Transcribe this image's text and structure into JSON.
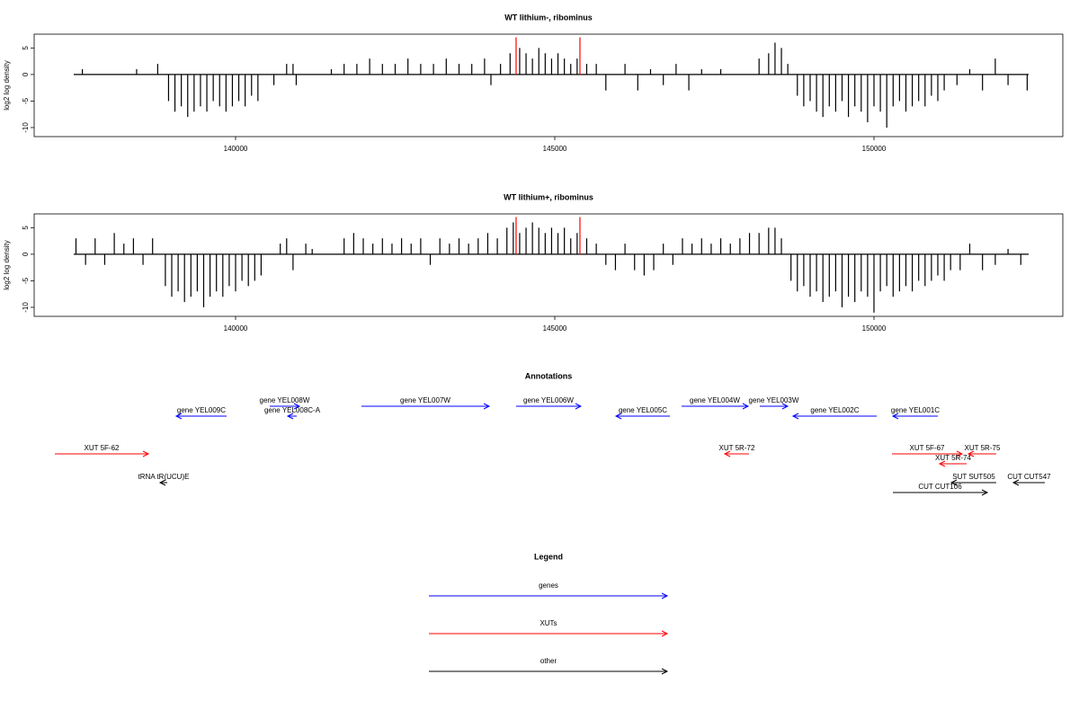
{
  "chart_data": [
    {
      "type": "bar",
      "title": "WT lithium-, ribominus",
      "y_label": "log2 log density",
      "color": "#000000",
      "xlim": [
        136845,
        152958
      ],
      "ylim": [
        -11.7,
        7.6
      ],
      "xticks": [
        140000,
        145000,
        150000
      ],
      "yticks": [
        -10,
        -5,
        0,
        5
      ],
      "track_range": [
        137465,
        152423
      ],
      "highlights": {
        "color": "#ff0000",
        "x": [
          144394,
          145394
        ],
        "values": [
          7,
          7
        ]
      },
      "x": [
        137600,
        138450,
        138780,
        138950,
        139050,
        139150,
        139250,
        139350,
        139450,
        139550,
        139650,
        139750,
        139850,
        139950,
        140050,
        140150,
        140250,
        140350,
        140600,
        140800,
        140900,
        140950,
        141500,
        141700,
        141900,
        142100,
        142300,
        142500,
        142700,
        142900,
        143100,
        143300,
        143500,
        143700,
        143900,
        144000,
        144150,
        144300,
        144450,
        144550,
        144650,
        144750,
        144850,
        144950,
        145050,
        145150,
        145250,
        145350,
        145500,
        145650,
        145800,
        146100,
        146300,
        146500,
        146700,
        146900,
        147100,
        147300,
        147600,
        148200,
        148350,
        148450,
        148550,
        148650,
        148800,
        148900,
        149000,
        149100,
        149200,
        149300,
        149400,
        149500,
        149600,
        149700,
        149800,
        149900,
        150000,
        150100,
        150200,
        150300,
        150400,
        150500,
        150600,
        150700,
        150800,
        150900,
        151000,
        151100,
        151300,
        151500,
        151700,
        151900,
        152100,
        152400
      ],
      "values": [
        1,
        1,
        2,
        -5,
        -7,
        -6,
        -8,
        -7,
        -6,
        -7,
        -5,
        -6,
        -7,
        -6,
        -5,
        -6,
        -4,
        -5,
        -2,
        2,
        2,
        -2,
        1,
        2,
        2,
        3,
        2,
        2,
        3,
        2,
        2,
        3,
        2,
        2,
        3,
        -2,
        2,
        4,
        5,
        4,
        3,
        5,
        4,
        3,
        4,
        3,
        2,
        3,
        2,
        2,
        -3,
        2,
        -3,
        1,
        -2,
        2,
        -3,
        1,
        1,
        3,
        4,
        6,
        5,
        2,
        -4,
        -6,
        -5,
        -7,
        -8,
        -6,
        -7,
        -5,
        -8,
        -6,
        -7,
        -9,
        -6,
        -7,
        -10,
        -6,
        -5,
        -7,
        -6,
        -5,
        -6,
        -4,
        -5,
        -3,
        -2,
        1,
        -3,
        3,
        -2,
        -3
      ]
    },
    {
      "type": "bar",
      "title": "WT lithium+, ribominus",
      "y_label": "log2 log density",
      "color": "#000000",
      "xlim": [
        136845,
        152958
      ],
      "ylim": [
        -11.7,
        7.6
      ],
      "xticks": [
        140000,
        145000,
        150000
      ],
      "yticks": [
        -10,
        -5,
        0,
        5
      ],
      "track_range": [
        137465,
        152423
      ],
      "highlights": {
        "color": "#ff0000",
        "x": [
          144394,
          145394
        ],
        "values": [
          7,
          7
        ]
      },
      "x": [
        137500,
        137650,
        137800,
        137950,
        138100,
        138250,
        138400,
        138550,
        138700,
        138900,
        139000,
        139100,
        139200,
        139300,
        139400,
        139500,
        139600,
        139700,
        139800,
        139900,
        140000,
        140100,
        140200,
        140300,
        140400,
        140700,
        140800,
        140900,
        141100,
        141200,
        141700,
        141850,
        142000,
        142150,
        142300,
        142450,
        142600,
        142750,
        142900,
        143050,
        143200,
        143350,
        143500,
        143650,
        143800,
        143950,
        144100,
        144250,
        144350,
        144450,
        144550,
        144650,
        144750,
        144850,
        144950,
        145050,
        145150,
        145250,
        145350,
        145500,
        145650,
        145800,
        145950,
        146100,
        146250,
        146400,
        146550,
        146700,
        146850,
        147000,
        147150,
        147300,
        147450,
        147600,
        147750,
        147900,
        148050,
        148200,
        148350,
        148450,
        148550,
        148700,
        148800,
        148900,
        149000,
        149100,
        149200,
        149300,
        149400,
        149500,
        149600,
        149700,
        149800,
        149900,
        150000,
        150100,
        150200,
        150300,
        150400,
        150500,
        150600,
        150700,
        150800,
        150900,
        151000,
        151100,
        151200,
        151350,
        151500,
        151700,
        151900,
        152100,
        152300
      ],
      "values": [
        3,
        -2,
        3,
        -2,
        4,
        2,
        3,
        -2,
        3,
        -6,
        -8,
        -7,
        -9,
        -8,
        -7,
        -10,
        -8,
        -7,
        -8,
        -6,
        -7,
        -5,
        -6,
        -5,
        -4,
        2,
        3,
        -3,
        2,
        1,
        3,
        4,
        3,
        2,
        3,
        2,
        3,
        2,
        3,
        -2,
        3,
        2,
        3,
        2,
        3,
        4,
        3,
        5,
        6,
        4,
        5,
        6,
        5,
        4,
        5,
        4,
        5,
        3,
        4,
        3,
        2,
        -2,
        -3,
        2,
        -3,
        -4,
        -3,
        2,
        -2,
        3,
        2,
        3,
        2,
        3,
        2,
        3,
        4,
        4,
        5,
        5,
        3,
        -5,
        -7,
        -6,
        -8,
        -7,
        -9,
        -8,
        -7,
        -10,
        -8,
        -9,
        -7,
        -8,
        -11,
        -7,
        -6,
        -8,
        -7,
        -6,
        -7,
        -5,
        -6,
        -5,
        -4,
        -5,
        -3,
        -3,
        2,
        -3,
        -2,
        1,
        -2
      ]
    },
    {
      "type": "annotation",
      "title": "Annotations",
      "xlim": [
        136845,
        152958
      ],
      "features": [
        {
          "label": "gene YEL009C",
          "start": 139070,
          "end": 139859,
          "direction": "left",
          "color": "#0000ff"
        },
        {
          "label": "gene YEL008W",
          "start": 140535,
          "end": 141000,
          "direction": "right",
          "color": "#0000ff"
        },
        {
          "label": "gene YEL008C-A",
          "start": 140817,
          "end": 140958,
          "direction": "left",
          "color": "#0000ff"
        },
        {
          "label": "gene YEL007W",
          "start": 141972,
          "end": 143972,
          "direction": "right",
          "color": "#0000ff"
        },
        {
          "label": "gene YEL006W",
          "start": 144394,
          "end": 145408,
          "direction": "right",
          "color": "#0000ff"
        },
        {
          "label": "gene YEL005C",
          "start": 145958,
          "end": 146803,
          "direction": "left",
          "color": "#0000ff"
        },
        {
          "label": "gene YEL004W",
          "start": 146986,
          "end": 148028,
          "direction": "right",
          "color": "#0000ff"
        },
        {
          "label": "gene YEL003W",
          "start": 148211,
          "end": 148648,
          "direction": "right",
          "color": "#0000ff"
        },
        {
          "label": "gene YEL002C",
          "start": 148732,
          "end": 150042,
          "direction": "left",
          "color": "#0000ff"
        },
        {
          "label": "gene YEL001C",
          "start": 150296,
          "end": 151000,
          "direction": "left",
          "color": "#0000ff"
        },
        {
          "label": "tRNA tR(UCU)E",
          "start": 138817,
          "end": 138930,
          "direction": "left",
          "color": "#000000"
        },
        {
          "label": "SUT SUT505",
          "start": 151211,
          "end": 151915,
          "direction": "left",
          "color": "#000000"
        },
        {
          "label": "CUT CUT106",
          "start": 150296,
          "end": 151775,
          "direction": "right",
          "color": "#000000"
        },
        {
          "label": "CUT CUT547",
          "start": 152183,
          "end": 152676,
          "direction": "left",
          "color": "#000000"
        },
        {
          "label": "XUT 5F-62",
          "start": 137169,
          "end": 138634,
          "direction": "right",
          "color": "#ff0000"
        },
        {
          "label": "XUT 5R-72",
          "start": 147662,
          "end": 148042,
          "direction": "left",
          "color": "#ff0000"
        },
        {
          "label": "XUT 5F-67",
          "start": 150282,
          "end": 151380,
          "direction": "right",
          "color": "#ff0000"
        },
        {
          "label": "XUT 5R-74",
          "start": 151028,
          "end": 151451,
          "direction": "left",
          "color": "#ff0000"
        },
        {
          "label": "XUT 5R-75",
          "start": 151479,
          "end": 151915,
          "direction": "left",
          "color": "#ff0000"
        }
      ],
      "legend": {
        "title": "Legend",
        "items": [
          {
            "name": "genes",
            "color": "#0000ff"
          },
          {
            "name": "XUTs",
            "color": "#ff0000"
          },
          {
            "name": "other",
            "color": "#000000"
          }
        ]
      }
    }
  ]
}
